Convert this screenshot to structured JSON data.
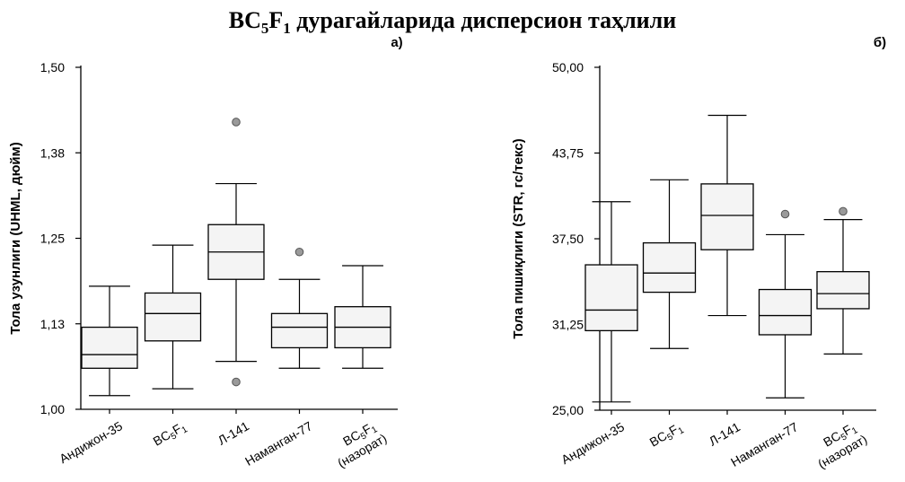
{
  "title": {
    "prefix": "BC",
    "sub1": "5",
    "mid": "F",
    "sub2": "1",
    "suffix": " дурагайларида дисперсион таҳлили"
  },
  "colors": {
    "box_fill": "#f4f4f4",
    "line": "#000000",
    "outlier": "#9a9a9a"
  },
  "chart_data": [
    {
      "type": "box",
      "panel_label": "а)",
      "ylabel": "Тола узунлиги (UHML, дюйм)",
      "ylim": [
        1.0,
        1.5
      ],
      "yticks": [
        "1,00",
        "1,13",
        "1,25",
        "1,38",
        "1,50"
      ],
      "categories": [
        {
          "label": "Андижон-35"
        },
        {
          "label_parts": [
            "BC",
            "5",
            "F",
            "1"
          ]
        },
        {
          "label": "Л-141"
        },
        {
          "label": "Наманган-77"
        },
        {
          "label_parts": [
            "BC",
            "5",
            "F",
            "1"
          ],
          "label_line2": "(назорат)"
        }
      ],
      "boxes": [
        {
          "min": 1.02,
          "q1": 1.06,
          "median": 1.08,
          "q3": 1.12,
          "max": 1.18,
          "outliers": []
        },
        {
          "min": 1.03,
          "q1": 1.1,
          "median": 1.14,
          "q3": 1.17,
          "max": 1.24,
          "outliers": []
        },
        {
          "min": 1.07,
          "q1": 1.19,
          "median": 1.23,
          "q3": 1.27,
          "max": 1.33,
          "outliers": [
            1.42,
            1.04
          ]
        },
        {
          "min": 1.06,
          "q1": 1.09,
          "median": 1.12,
          "q3": 1.14,
          "max": 1.19,
          "outliers": [
            1.23
          ]
        },
        {
          "min": 1.06,
          "q1": 1.09,
          "median": 1.12,
          "q3": 1.15,
          "max": 1.21,
          "outliers": []
        }
      ]
    },
    {
      "type": "box",
      "panel_label": "б)",
      "ylabel": "Тола пишиқлиги (STR, гс/текс)",
      "ylim": [
        25.0,
        50.0
      ],
      "yticks": [
        "25,00",
        "31,25",
        "37,50",
        "43,75",
        "50,00"
      ],
      "categories": [
        {
          "label": "Андижон-35"
        },
        {
          "label_parts": [
            "BC",
            "5",
            "F",
            "1"
          ]
        },
        {
          "label": "Л-141"
        },
        {
          "label": "Наманган-77"
        },
        {
          "label_parts": [
            "BC",
            "5",
            "F",
            "1"
          ],
          "label_line2": "(назорат)"
        }
      ],
      "boxes": [
        {
          "min": 25.6,
          "q1": 30.8,
          "median": 32.3,
          "q3": 35.6,
          "max": 40.2,
          "outliers": []
        },
        {
          "min": 29.5,
          "q1": 33.6,
          "median": 35.0,
          "q3": 37.2,
          "max": 41.8,
          "outliers": []
        },
        {
          "min": 31.9,
          "q1": 36.7,
          "median": 39.2,
          "q3": 41.5,
          "max": 46.5,
          "outliers": []
        },
        {
          "min": 25.9,
          "q1": 30.5,
          "median": 31.9,
          "q3": 33.8,
          "max": 37.8,
          "outliers": [
            39.3
          ]
        },
        {
          "min": 29.1,
          "q1": 32.4,
          "median": 33.5,
          "q3": 35.1,
          "max": 38.9,
          "outliers": [
            39.5
          ]
        }
      ]
    }
  ]
}
